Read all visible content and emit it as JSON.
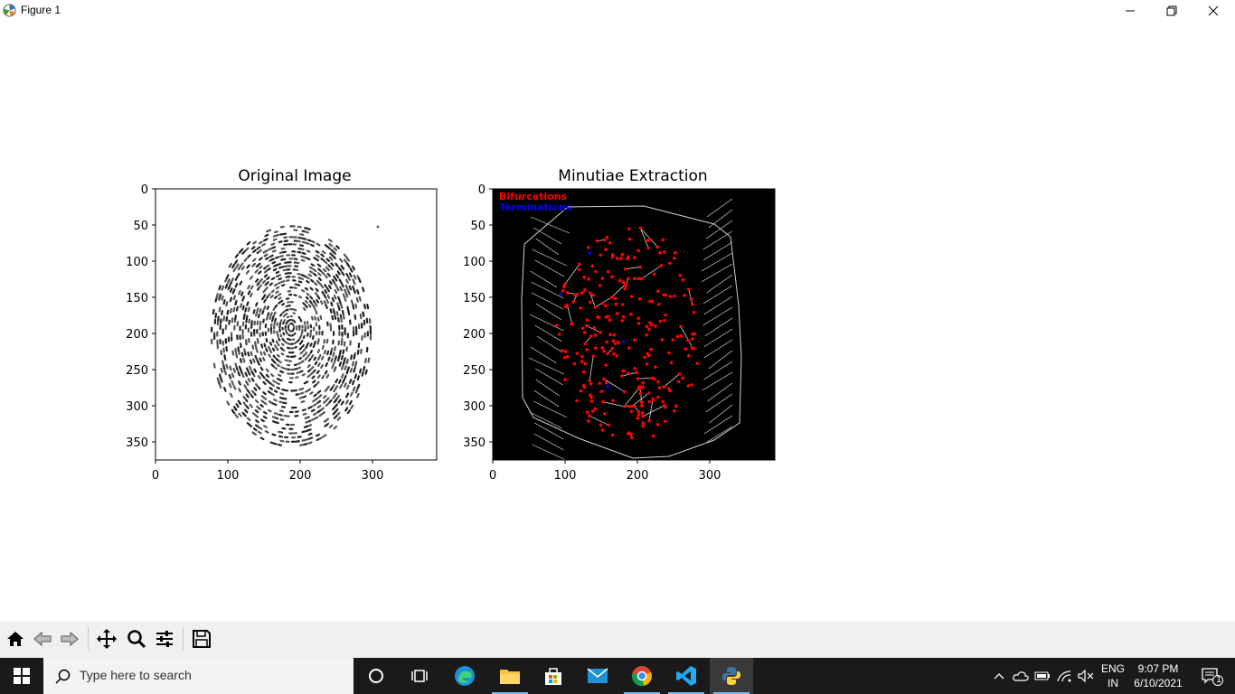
{
  "window": {
    "title": "Figure 1",
    "controls": {
      "minimize": "minimize-icon",
      "maximize": "restore-icon",
      "close": "close-icon"
    }
  },
  "figure": {
    "panels": [
      {
        "title": "Original Image",
        "xticks": [
          "0",
          "100",
          "200",
          "300"
        ],
        "yticks": [
          "0",
          "50",
          "100",
          "150",
          "200",
          "250",
          "300",
          "350"
        ],
        "background": "#ffffff",
        "content": "fingerprint grayscale image"
      },
      {
        "title": "Minutiae Extraction",
        "xticks": [
          "0",
          "100",
          "200",
          "300"
        ],
        "yticks": [
          "0",
          "50",
          "100",
          "150",
          "200",
          "250",
          "300",
          "350"
        ],
        "background": "#000000",
        "content": "voronoi-like minutiae network",
        "legend": [
          {
            "label": "Bifurcations",
            "color": "#ff0000"
          },
          {
            "label": "Terminations",
            "color": "#0000ff"
          }
        ]
      }
    ]
  },
  "toolbar": {
    "buttons": [
      "home-icon",
      "back-icon",
      "forward-icon",
      "pan-icon",
      "zoom-icon",
      "configure-subplots-icon",
      "save-icon"
    ]
  },
  "taskbar": {
    "search_placeholder": "Type here to search",
    "apps": [
      "cortana",
      "task-view",
      "edge",
      "file-explorer",
      "store",
      "mail",
      "chrome",
      "vscode",
      "python"
    ],
    "tray": {
      "lang_top": "ENG",
      "lang_bottom": "IN",
      "time": "9:07 PM",
      "date": "6/10/2021",
      "notifications": "1"
    }
  }
}
